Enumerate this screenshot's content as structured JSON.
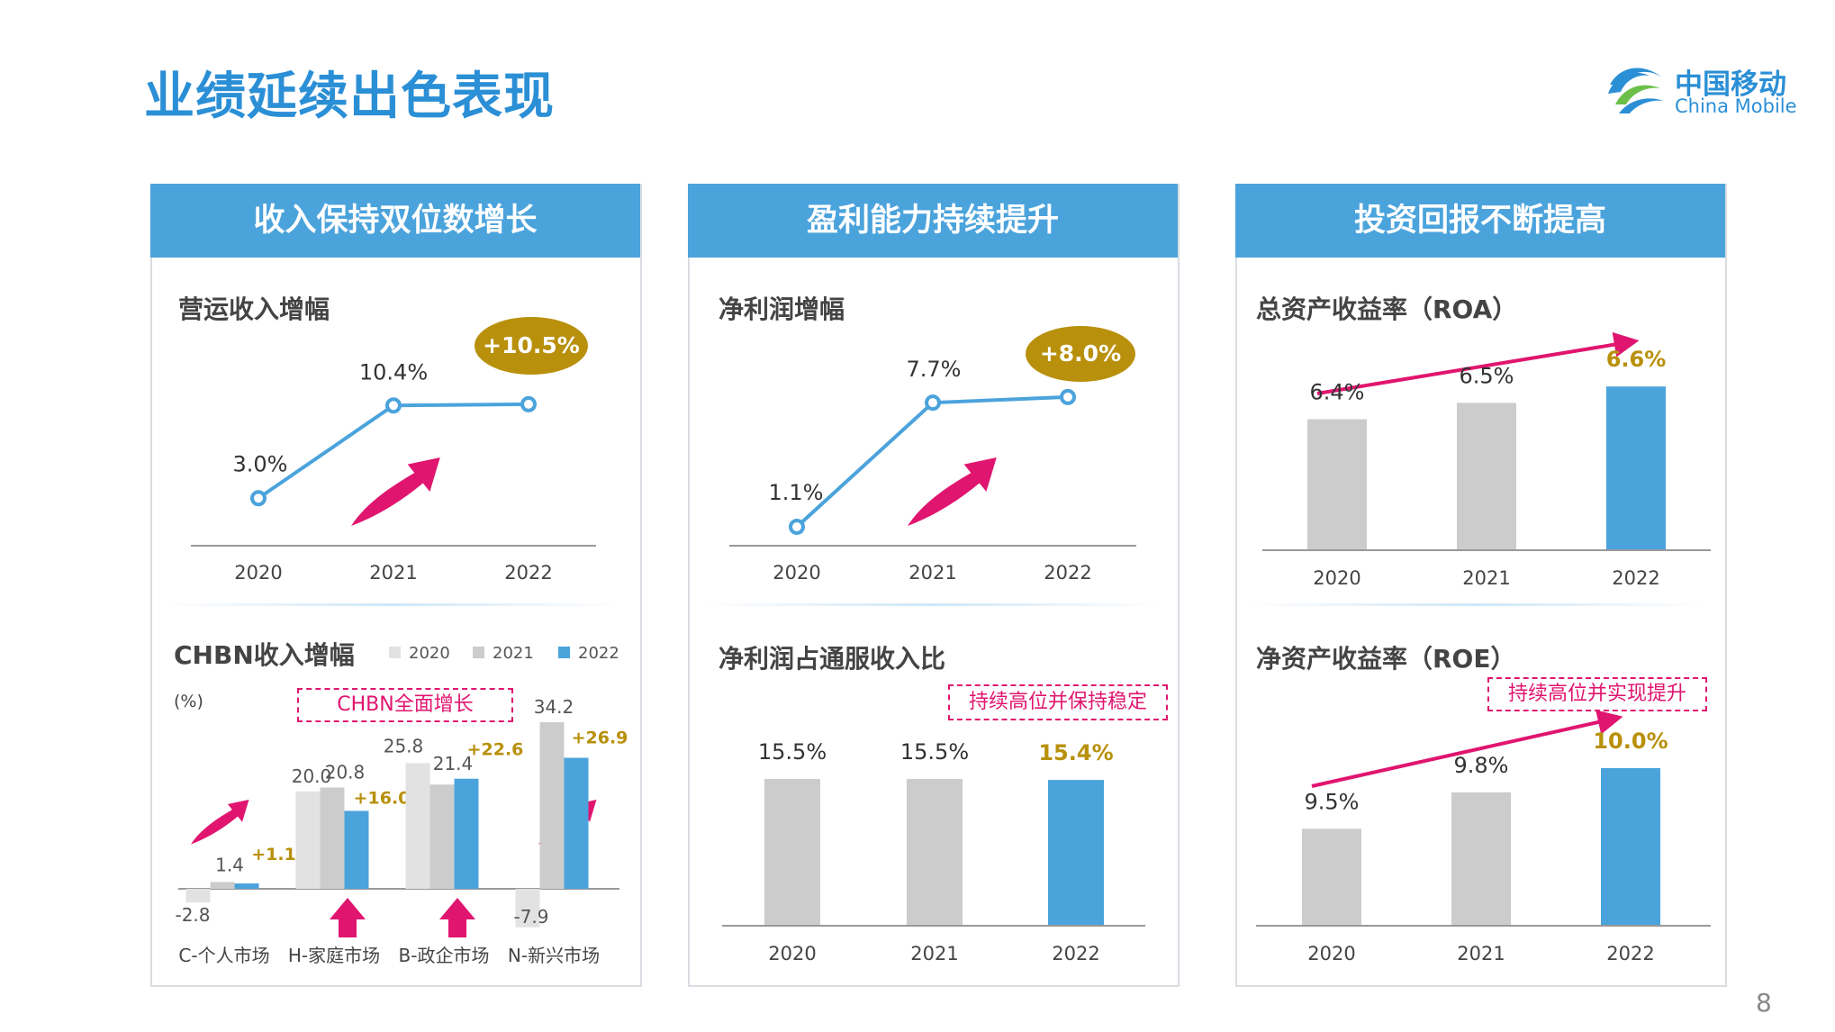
{
  "page": {
    "title": "业绩延续出色表现",
    "logo_cn": "中国移动",
    "logo_en": "China Mobile",
    "page_number": "8"
  },
  "panels": [
    {
      "header": "收入保持双位数增长"
    },
    {
      "header": "盈利能力持续提升"
    },
    {
      "header": "投资回报不断提高"
    }
  ],
  "colors": {
    "accent_blue": "#4ba3dc",
    "gray_bar": "#cccccc",
    "light_gray_bar": "#e2e2e2",
    "gold": "#b8900b",
    "magenta": "#e0156f"
  },
  "chart_data": [
    {
      "id": "revenue_growth",
      "type": "line",
      "title": "营运收入增幅",
      "categories": [
        "2020",
        "2021",
        "2022"
      ],
      "values": [
        3.0,
        10.4,
        10.5
      ],
      "labels": [
        "3.0%",
        "10.4%",
        ""
      ],
      "badge": "+10.5%",
      "ylim": [
        0,
        12
      ]
    },
    {
      "id": "chbn_growth",
      "type": "bar",
      "title": "CHBN收入增幅",
      "unit": "(%)",
      "note": "CHBN全面增长",
      "categories": [
        "C-个人市场",
        "H-家庭市场",
        "B-政企市场",
        "N-新兴市场"
      ],
      "series": [
        {
          "name": "2020",
          "values": [
            -2.8,
            20.0,
            25.8,
            -7.9
          ],
          "labels": [
            "-2.8",
            "20.0",
            "25.8",
            "-7.9"
          ]
        },
        {
          "name": "2021",
          "values": [
            1.4,
            20.8,
            21.4,
            34.2
          ],
          "labels": [
            "1.4",
            "20.8",
            "21.4",
            "34.2"
          ]
        },
        {
          "name": "2022",
          "values": [
            1.1,
            16.0,
            22.6,
            26.9
          ],
          "labels": [
            "+1.1",
            "+16.0",
            "+22.6",
            "+26.9"
          ]
        }
      ],
      "ylim": [
        -10,
        36
      ]
    },
    {
      "id": "net_profit_growth",
      "type": "line",
      "title": "净利润增幅",
      "categories": [
        "2020",
        "2021",
        "2022"
      ],
      "values": [
        1.1,
        7.7,
        8.0
      ],
      "labels": [
        "1.1%",
        "7.7%",
        ""
      ],
      "badge": "+8.0%",
      "ylim": [
        0,
        9
      ]
    },
    {
      "id": "net_profit_ratio",
      "type": "bar",
      "title": "净利润占通服收入比",
      "note": "持续高位并保持稳定",
      "categories": [
        "2020",
        "2021",
        "2022"
      ],
      "values": [
        15.5,
        15.5,
        15.4
      ],
      "labels": [
        "15.5%",
        "15.5%",
        "15.4%"
      ],
      "ylim": [
        0,
        19.5
      ]
    },
    {
      "id": "roa",
      "type": "bar",
      "title": "总资产收益率（ROA）",
      "categories": [
        "2020",
        "2021",
        "2022"
      ],
      "values": [
        6.4,
        6.5,
        6.6
      ],
      "labels": [
        "6.4%",
        "6.5%",
        "6.6%"
      ],
      "ylim": [
        5.6,
        6.7
      ]
    },
    {
      "id": "roe",
      "type": "bar",
      "title": "净资产收益率（ROE）",
      "note": "持续高位并实现提升",
      "categories": [
        "2020",
        "2021",
        "2022"
      ],
      "values": [
        9.5,
        9.8,
        10.0
      ],
      "labels": [
        "9.5%",
        "9.8%",
        "10.0%"
      ],
      "ylim": [
        8.7,
        10.2
      ]
    }
  ]
}
